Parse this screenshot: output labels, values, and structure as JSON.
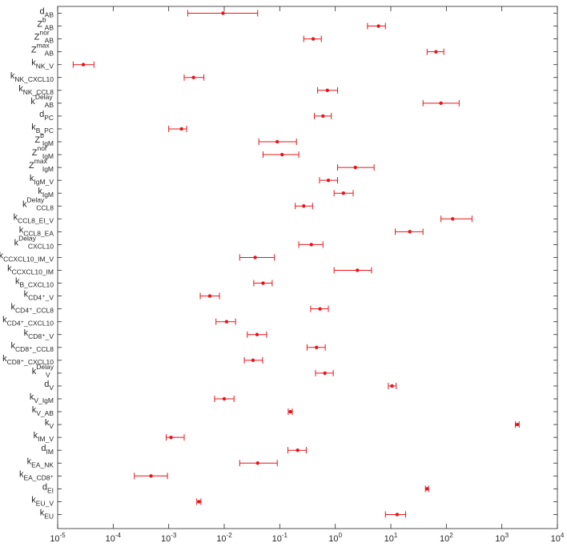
{
  "chart_data": {
    "type": "scatter",
    "subtype": "horizontal-errorbar",
    "title": "",
    "xlabel": "",
    "ylabel": "",
    "x_scale": "log",
    "xlim": [
      1e-05,
      10000
    ],
    "x_tick_values": [
      1e-05,
      0.0001,
      0.001,
      0.01,
      0.1,
      1,
      10,
      100,
      1000,
      10000
    ],
    "x_tick_labels": [
      {
        "base": "10",
        "exp": "-5"
      },
      {
        "base": "10",
        "exp": "-4"
      },
      {
        "base": "10",
        "exp": "-3"
      },
      {
        "base": "10",
        "exp": "-2"
      },
      {
        "base": "10",
        "exp": "-1"
      },
      {
        "base": "10",
        "exp": "0"
      },
      {
        "base": "10",
        "exp": "1"
      },
      {
        "base": "10",
        "exp": "2"
      },
      {
        "base": "10",
        "exp": "3"
      },
      {
        "base": "10",
        "exp": "4"
      }
    ],
    "grid": false,
    "marker_color": "#e8141b",
    "parameters": [
      {
        "base": "d",
        "sub": "AB",
        "sup": "",
        "value": 0.0095,
        "lower": 0.0022,
        "upper": 0.04
      },
      {
        "base": "Z",
        "sub": "AB",
        "sup": "b",
        "value": 6.0,
        "lower": 3.8,
        "upper": 8.0
      },
      {
        "base": "Z",
        "sub": "AB",
        "sup": "nor",
        "value": 0.4,
        "lower": 0.27,
        "upper": 0.56
      },
      {
        "base": "Z",
        "sub": "AB",
        "sup": "max",
        "value": 65,
        "lower": 45,
        "upper": 90
      },
      {
        "base": "k",
        "sub": "NK_V",
        "sup": "",
        "value": 2.9e-05,
        "lower": 1.9e-05,
        "upper": 4.5e-05
      },
      {
        "base": "k",
        "sub": "NK_CXCL10",
        "sup": "",
        "value": 0.0028,
        "lower": 0.0019,
        "upper": 0.0043
      },
      {
        "base": "k",
        "sub": "NK_CCL8",
        "sup": "",
        "value": 0.72,
        "lower": 0.48,
        "upper": 1.1
      },
      {
        "base": "k",
        "sub": "AB",
        "sup": "Delay",
        "value": 80,
        "lower": 38,
        "upper": 170
      },
      {
        "base": "d",
        "sub": "PC",
        "sup": "",
        "value": 0.6,
        "lower": 0.42,
        "upper": 0.85
      },
      {
        "base": "k",
        "sub": "B_PC",
        "sup": "",
        "value": 0.0017,
        "lower": 0.001,
        "upper": 0.0021
      },
      {
        "base": "Z",
        "sub": "IgM",
        "sup": "b",
        "value": 0.09,
        "lower": 0.042,
        "upper": 0.2
      },
      {
        "base": "Z",
        "sub": "IgM",
        "sup": "nor",
        "value": 0.11,
        "lower": 0.05,
        "upper": 0.22
      },
      {
        "base": "Z",
        "sub": "IgM",
        "sup": "max",
        "value": 2.3,
        "lower": 1.1,
        "upper": 5.0
      },
      {
        "base": "k",
        "sub": "IgM_V",
        "sup": "",
        "value": 0.75,
        "lower": 0.52,
        "upper": 1.1
      },
      {
        "base": "k",
        "sub": "IgM",
        "sup": "",
        "value": 1.4,
        "lower": 0.95,
        "upper": 2.1
      },
      {
        "base": "k",
        "sub": "CCL8",
        "sup": "Delay",
        "value": 0.27,
        "lower": 0.19,
        "upper": 0.39
      },
      {
        "base": "k",
        "sub": "CCL8_EI_V",
        "sup": "",
        "value": 130,
        "lower": 80,
        "upper": 290
      },
      {
        "base": "k",
        "sub": "CCL8_EA",
        "sup": "",
        "value": 22,
        "lower": 12,
        "upper": 38
      },
      {
        "base": "k",
        "sub": "CXCL10",
        "sup": "Delay",
        "value": 0.37,
        "lower": 0.22,
        "upper": 0.6
      },
      {
        "base": "k",
        "sub": "CCXCL10_IM_V",
        "sup": "",
        "value": 0.036,
        "lower": 0.019,
        "upper": 0.08
      },
      {
        "base": "k",
        "sub": "CCXCL10_IM",
        "sup": "",
        "value": 2.5,
        "lower": 0.95,
        "upper": 4.5
      },
      {
        "base": "k",
        "sub": "B_CXCL10",
        "sup": "",
        "value": 0.05,
        "lower": 0.034,
        "upper": 0.073
      },
      {
        "base": "k",
        "sub": "CD4+_V",
        "sup": "",
        "value": 0.0055,
        "lower": 0.0037,
        "upper": 0.0082
      },
      {
        "base": "k",
        "sub": "CD4+_CCL8",
        "sup": "",
        "value": 0.53,
        "lower": 0.36,
        "upper": 0.75
      },
      {
        "base": "k",
        "sub": "CD4+_CXCL10",
        "sup": "",
        "value": 0.011,
        "lower": 0.0071,
        "upper": 0.016
      },
      {
        "base": "k",
        "sub": "CD8+_V",
        "sup": "",
        "value": 0.039,
        "lower": 0.026,
        "upper": 0.058
      },
      {
        "base": "k",
        "sub": "CD8+_CCL8",
        "sup": "",
        "value": 0.46,
        "lower": 0.31,
        "upper": 0.66
      },
      {
        "base": "k",
        "sub": "CD8+_CXCL10",
        "sup": "",
        "value": 0.033,
        "lower": 0.023,
        "upper": 0.049
      },
      {
        "base": "k",
        "sub": "V",
        "sup": "Delay",
        "value": 0.65,
        "lower": 0.44,
        "upper": 0.92
      },
      {
        "base": "d",
        "sub": "V",
        "sup": "",
        "value": 10.5,
        "lower": 9.0,
        "upper": 12.5
      },
      {
        "base": "k",
        "sub": "V_IgM",
        "sup": "",
        "value": 0.01,
        "lower": 0.0067,
        "upper": 0.015
      },
      {
        "base": "k",
        "sub": "V_AB",
        "sup": "",
        "value": 0.155,
        "lower": 0.142,
        "upper": 0.168
      },
      {
        "base": "k",
        "sub": "V",
        "sup": "",
        "value": 1900,
        "lower": 1750,
        "upper": 2050
      },
      {
        "base": "k",
        "sub": "IM_V",
        "sup": "",
        "value": 0.0011,
        "lower": 0.0009,
        "upper": 0.0019
      },
      {
        "base": "d",
        "sub": "IM",
        "sup": "",
        "value": 0.21,
        "lower": 0.14,
        "upper": 0.3
      },
      {
        "base": "k",
        "sub": "EA_NK",
        "sup": "",
        "value": 0.04,
        "lower": 0.019,
        "upper": 0.09
      },
      {
        "base": "k",
        "sub": "EA_CD8+",
        "sup": "",
        "value": 0.00048,
        "lower": 0.00024,
        "upper": 0.00095
      },
      {
        "base": "d",
        "sub": "EI",
        "sup": "",
        "value": 45,
        "lower": 42,
        "upper": 48
      },
      {
        "base": "k",
        "sub": "EU_V",
        "sup": "",
        "value": 0.0035,
        "lower": 0.0032,
        "upper": 0.0038
      },
      {
        "base": "k",
        "sub": "EU",
        "sup": "",
        "value": 13,
        "lower": 8.0,
        "upper": 18.5
      }
    ]
  }
}
